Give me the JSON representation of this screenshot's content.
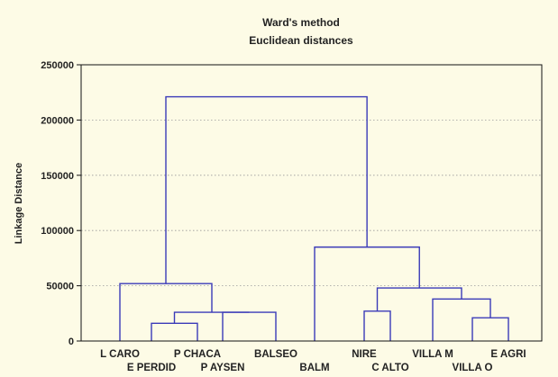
{
  "chart_data": {
    "type": "dendrogram",
    "title": "Ward's method",
    "subtitle": "Euclidean distances",
    "ylabel": "Linkage Distance",
    "xlabel": "",
    "ylim": [
      0,
      250000
    ],
    "yticks": [
      0,
      50000,
      100000,
      150000,
      200000,
      250000
    ],
    "ytick_labels": [
      "0",
      "50000",
      "100000",
      "150000",
      "200000",
      "250000"
    ],
    "grid": true,
    "link_color": "#3a3ab8",
    "leaves": [
      "L CARO",
      "E PERDID",
      "P CHACA",
      "P AYSEN",
      "BALSEO",
      "BALM",
      "NIRE",
      "C ALTO",
      "VILLA M",
      "VILLA O",
      "E AGRI"
    ],
    "merges": [
      {
        "id": "m1",
        "left": "leaf:1",
        "right": "leaf:2",
        "height": 16000
      },
      {
        "id": "m2",
        "left": "leaf:3",
        "right": "leaf:4",
        "height": 26000
      },
      {
        "id": "m3",
        "left": "m1",
        "right": "m2",
        "height": 26000
      },
      {
        "id": "m4",
        "left": "leaf:0",
        "right": "m3",
        "height": 52000
      },
      {
        "id": "m5",
        "left": "leaf:6",
        "right": "leaf:7",
        "height": 27000
      },
      {
        "id": "m6",
        "left": "leaf:9",
        "right": "leaf:10",
        "height": 21000
      },
      {
        "id": "m7",
        "left": "leaf:8",
        "right": "m6",
        "height": 38000
      },
      {
        "id": "m8",
        "left": "m5",
        "right": "m7",
        "height": 48000
      },
      {
        "id": "m9",
        "left": "leaf:5",
        "right": "m8",
        "height": 85000
      },
      {
        "id": "m10",
        "left": "m4",
        "right": "m9",
        "height": 221000
      }
    ]
  }
}
